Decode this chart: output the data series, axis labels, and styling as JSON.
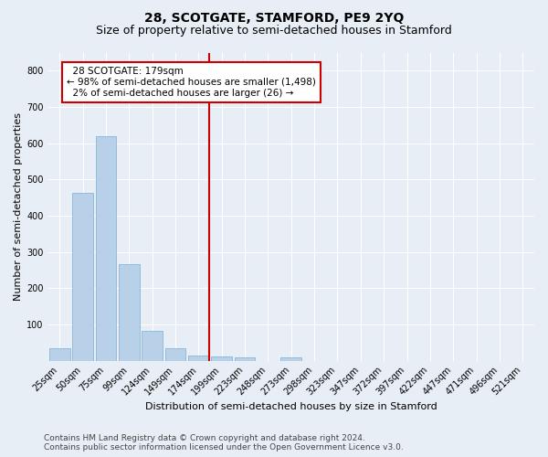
{
  "title": "28, SCOTGATE, STAMFORD, PE9 2YQ",
  "subtitle": "Size of property relative to semi-detached houses in Stamford",
  "xlabel": "Distribution of semi-detached houses by size in Stamford",
  "ylabel": "Number of semi-detached properties",
  "categories": [
    "25sqm",
    "50sqm",
    "75sqm",
    "99sqm",
    "124sqm",
    "149sqm",
    "174sqm",
    "199sqm",
    "223sqm",
    "248sqm",
    "273sqm",
    "298sqm",
    "323sqm",
    "347sqm",
    "372sqm",
    "397sqm",
    "422sqm",
    "447sqm",
    "471sqm",
    "496sqm",
    "521sqm"
  ],
  "values": [
    35,
    462,
    620,
    267,
    82,
    35,
    14,
    12,
    10,
    0,
    8,
    0,
    0,
    0,
    0,
    0,
    0,
    0,
    0,
    0,
    0
  ],
  "bar_color": "#b8d0e8",
  "bar_edge_color": "#7aafd4",
  "vline_color": "#cc0000",
  "annotation_box_edge": "#cc0000",
  "ylim": [
    0,
    850
  ],
  "yticks": [
    0,
    100,
    200,
    300,
    400,
    500,
    600,
    700,
    800
  ],
  "footer_line1": "Contains HM Land Registry data © Crown copyright and database right 2024.",
  "footer_line2": "Contains public sector information licensed under the Open Government Licence v3.0.",
  "bg_color": "#e8eef5",
  "plot_bg_color": "#e8eef5",
  "grid_color": "#ffffff",
  "title_fontsize": 10,
  "subtitle_fontsize": 9,
  "axis_label_fontsize": 8,
  "tick_fontsize": 7,
  "footer_fontsize": 6.5,
  "annotation_fontsize": 7.5
}
